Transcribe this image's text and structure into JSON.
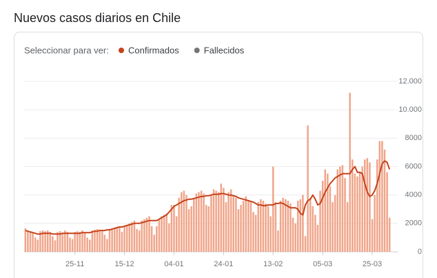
{
  "chart_data": {
    "type": "bar",
    "title": "Nuevos casos diarios en Chile",
    "selector_label": "Seleccionar para ver:",
    "categories": [
      null,
      null,
      null,
      null,
      null,
      null,
      null,
      null,
      null,
      null,
      null,
      null,
      null,
      null,
      null,
      null,
      null,
      null,
      null,
      null,
      "25-11",
      null,
      null,
      null,
      null,
      null,
      null,
      null,
      null,
      null,
      null,
      null,
      null,
      null,
      null,
      null,
      null,
      null,
      null,
      null,
      "15-12",
      null,
      null,
      null,
      null,
      null,
      null,
      null,
      null,
      null,
      null,
      null,
      null,
      null,
      null,
      null,
      null,
      null,
      null,
      null,
      "04-01",
      null,
      null,
      null,
      null,
      null,
      null,
      null,
      null,
      null,
      null,
      null,
      null,
      null,
      null,
      null,
      null,
      null,
      null,
      null,
      "24-01",
      null,
      null,
      null,
      null,
      null,
      null,
      null,
      null,
      null,
      null,
      null,
      null,
      null,
      null,
      null,
      null,
      null,
      null,
      null,
      "13-02",
      null,
      null,
      null,
      null,
      null,
      null,
      null,
      null,
      null,
      null,
      null,
      null,
      null,
      null,
      null,
      null,
      null,
      null,
      null,
      "05-03",
      null,
      null,
      null,
      null,
      null,
      null,
      null,
      null,
      null,
      null,
      null,
      null,
      null,
      null,
      null,
      null,
      null,
      null,
      null,
      "25-03",
      null,
      null,
      null,
      null,
      null,
      null,
      null
    ],
    "series": [
      {
        "name": "Confirmados",
        "color": "#c5421b",
        "bar_color": "#f0a58a",
        "values": [
          1650,
          1450,
          1400,
          1350,
          1000,
          850,
          1450,
          1500,
          1450,
          1500,
          1400,
          1100,
          800,
          1400,
          1450,
          1350,
          1500,
          1400,
          1000,
          900,
          1400,
          1450,
          1400,
          1500,
          1350,
          1000,
          850,
          1500,
          1550,
          1600,
          1500,
          1500,
          1200,
          900,
          1550,
          1600,
          1650,
          1700,
          1750,
          1400,
          1800,
          1900,
          2000,
          2100,
          2200,
          1600,
          1500,
          2200,
          2300,
          2400,
          2500,
          1800,
          1200,
          1800,
          2300,
          2500,
          2600,
          2700,
          2000,
          3300,
          3300,
          2500,
          3800,
          4200,
          4300,
          4000,
          3000,
          3200,
          3800,
          4100,
          4200,
          4300,
          4100,
          3300,
          3200,
          4000,
          4400,
          4300,
          4200,
          4800,
          4500,
          3500,
          4200,
          4400,
          4000,
          3800,
          3000,
          3300,
          3600,
          3900,
          3600,
          3500,
          2800,
          2600,
          3500,
          3700,
          3600,
          3400,
          3200,
          2500,
          6000,
          3500,
          1500,
          3600,
          3800,
          3700,
          3600,
          3400,
          2400,
          2000,
          3600,
          3700,
          4000,
          1100,
          8900,
          3800,
          3200,
          2600,
          1900,
          4300,
          5000,
          5800,
          5500,
          4600,
          3500,
          4000,
          5800,
          6000,
          6100,
          5200,
          3500,
          11200,
          6500,
          5500,
          5300,
          5600,
          6000,
          6500,
          6600,
          6300,
          2300,
          4000,
          6500,
          7800,
          7800,
          7200,
          5600,
          2400
        ],
        "average": [
          1500,
          1450,
          1400,
          1350,
          1300,
          1250,
          1250,
          1300,
          1300,
          1300,
          1300,
          1250,
          1250,
          1250,
          1250,
          1300,
          1300,
          1300,
          1300,
          1300,
          1300,
          1300,
          1300,
          1350,
          1350,
          1350,
          1350,
          1400,
          1450,
          1450,
          1500,
          1500,
          1500,
          1550,
          1550,
          1600,
          1650,
          1700,
          1750,
          1750,
          1800,
          1850,
          1900,
          1950,
          2000,
          2000,
          2000,
          2050,
          2100,
          2150,
          2200,
          2200,
          2200,
          2200,
          2300,
          2400,
          2500,
          2600,
          2800,
          3000,
          3200,
          3300,
          3400,
          3500,
          3600,
          3650,
          3700,
          3700,
          3750,
          3800,
          3850,
          3900,
          3900,
          3950,
          3950,
          4000,
          4050,
          4050,
          4050,
          4100,
          4100,
          4050,
          4000,
          4000,
          3950,
          3900,
          3800,
          3750,
          3700,
          3650,
          3600,
          3550,
          3500,
          3400,
          3300,
          3300,
          3250,
          3250,
          3300,
          3300,
          3300,
          3400,
          3400,
          3450,
          3400,
          3300,
          3200,
          3100,
          3100,
          3100,
          3000,
          2700,
          2600,
          3300,
          3600,
          3700,
          4000,
          3700,
          3300,
          3400,
          3800,
          4200,
          4500,
          4800,
          5000,
          5200,
          5300,
          5400,
          5500,
          5500,
          5500,
          5500,
          5800,
          6000,
          5600,
          5600,
          5500,
          4800,
          4200,
          3900,
          4000,
          4300,
          4800,
          5500,
          6200,
          6400,
          6300,
          5800
        ]
      },
      {
        "name": "Fallecidos",
        "color": "#757575"
      }
    ],
    "ylim": [
      0,
      12000
    ],
    "yticks": [
      0,
      {
        "value": 2000,
        "label": "2000"
      },
      {
        "value": 4000,
        "label": "4000"
      },
      {
        "value": 6000,
        "label": "6000"
      },
      {
        "value": 8000,
        "label": "8000"
      },
      {
        "value": 10000,
        "label": "10.000"
      },
      {
        "value": 12000,
        "label": "12.000"
      }
    ],
    "grid": true
  }
}
